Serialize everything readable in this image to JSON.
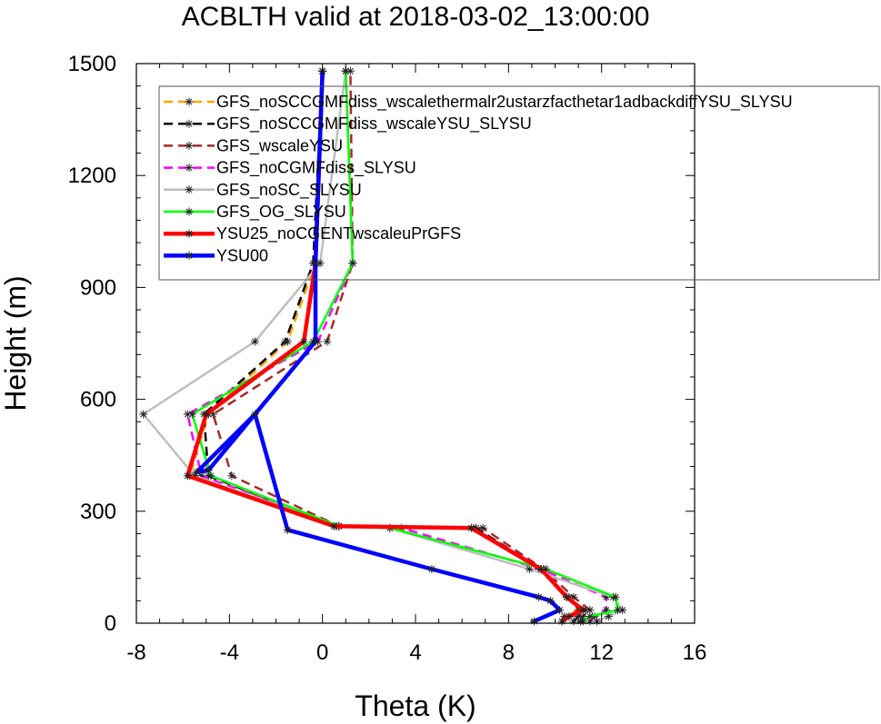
{
  "chart_data": {
    "type": "line",
    "title": "ACBLTH valid at 2018-03-02_13:00:00",
    "xlabel": "Theta (K)",
    "ylabel": "Height (m)",
    "xlim": [
      -8,
      16
    ],
    "ylim": [
      0,
      1500
    ],
    "xticks": [
      -8,
      -4,
      0,
      4,
      8,
      12,
      16
    ],
    "yticks": [
      0,
      300,
      600,
      900,
      1200,
      1500
    ],
    "xtick_labels": [
      "-8",
      "-4",
      "0",
      "4",
      "8",
      "12",
      "16"
    ],
    "ytick_labels": [
      "0",
      "300",
      "600",
      "900",
      "1200",
      "1500"
    ],
    "grid": false,
    "legend_position": "top-right",
    "series": [
      {
        "name": "GFS_noSCCGMFdiss_wscalethermalr2ustarzfacthetar1adbackdiffYSU_SLYSU",
        "color": "#ffa500",
        "dash": "dash",
        "width": 2.5,
        "x": [
          10.3,
          10.4,
          11.0,
          10.6,
          9.3,
          6.5,
          0.6,
          -5.7,
          -4.9,
          -1.5,
          -0.3,
          0.0
        ],
        "y": [
          5,
          18,
          35,
          70,
          145,
          255,
          260,
          395,
          560,
          755,
          965,
          1480
        ]
      },
      {
        "name": "GFS_noSCCGMFdiss_wscaleYSU_SLYSU",
        "color": "#000000",
        "dash": "dash",
        "width": 2.5,
        "x": [
          10.8,
          11.0,
          11.3,
          10.5,
          9.4,
          6.6,
          0.6,
          -4.9,
          -5.1,
          -1.6,
          -0.4,
          0.0
        ],
        "y": [
          5,
          18,
          35,
          70,
          145,
          255,
          260,
          395,
          560,
          755,
          965,
          1480
        ]
      },
      {
        "name": "GFS_wscaleYSU",
        "color": "#a52a2a",
        "dash": "dash",
        "width": 2.5,
        "x": [
          11.1,
          11.2,
          11.5,
          10.8,
          9.5,
          6.9,
          0.7,
          -3.9,
          -4.7,
          0.2,
          1.3,
          1.2
        ],
        "y": [
          5,
          18,
          35,
          70,
          145,
          255,
          260,
          395,
          560,
          755,
          965,
          1480
        ]
      },
      {
        "name": "GFS_noCGMFdiss_SLYSU",
        "color": "#ff00ff",
        "dash": "dash",
        "width": 2.5,
        "x": [
          11.5,
          11.7,
          12.2,
          12.2,
          9.4,
          3.4,
          0.7,
          -5.2,
          -5.8,
          -0.2,
          1.3,
          1.0
        ],
        "y": [
          5,
          18,
          35,
          70,
          145,
          255,
          260,
          395,
          560,
          755,
          965,
          1480
        ]
      },
      {
        "name": "GFS_noSC_SLYSU",
        "color": "#bebebe",
        "dash": "solid",
        "width": 2.5,
        "x": [
          11.8,
          12.3,
          12.9,
          12.5,
          8.9,
          2.9,
          0.7,
          -5.5,
          -7.7,
          -2.9,
          -0.1,
          1.0
        ],
        "y": [
          5,
          18,
          35,
          70,
          145,
          255,
          260,
          395,
          560,
          755,
          965,
          1480
        ]
      },
      {
        "name": "GFS_OG_SLYSU",
        "color": "#00ff00",
        "dash": "solid",
        "width": 2.5,
        "x": [
          11.2,
          11.5,
          12.7,
          12.6,
          9.6,
          2.9,
          0.7,
          -4.8,
          -5.6,
          -0.4,
          1.3,
          1.0
        ],
        "y": [
          5,
          18,
          35,
          70,
          145,
          255,
          260,
          395,
          560,
          755,
          965,
          1480
        ]
      },
      {
        "name": "YSU25_noCGENTwscaleuPrGFS",
        "color": "#ff0000",
        "dash": "solid",
        "width": 4.5,
        "x": [
          10.3,
          10.6,
          11.2,
          10.5,
          9.4,
          6.4,
          0.5,
          -5.8,
          -5.0,
          -0.8,
          -0.3,
          0.0
        ],
        "y": [
          5,
          18,
          35,
          70,
          145,
          255,
          260,
          395,
          560,
          755,
          965,
          1480
        ]
      },
      {
        "name": "YSU00",
        "color": "#0000ff",
        "dash": "solid",
        "width": 4.5,
        "x": [
          9.1,
          10.2,
          9.8,
          9.3,
          4.7,
          -1.5,
          -2.9,
          -5.4,
          -4.9,
          -0.3,
          -0.3,
          0.0
        ],
        "y": [
          5,
          35,
          60,
          70,
          145,
          250,
          560,
          405,
          410,
          755,
          965,
          1480
        ]
      }
    ]
  }
}
